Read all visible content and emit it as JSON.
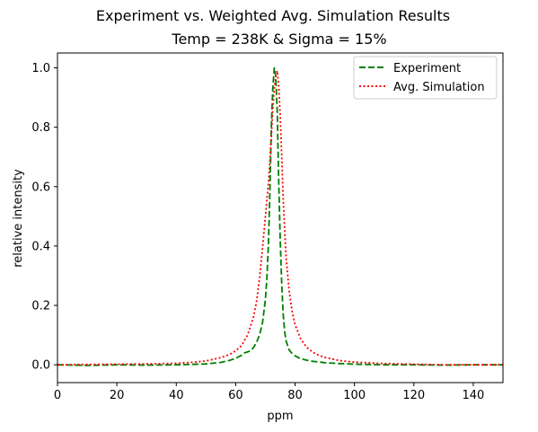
{
  "chart_data": {
    "type": "line",
    "suptitle": "Experiment vs. Weighted Avg. Simulation Results",
    "title": "Temp = 238K & Sigma = 15%",
    "xlabel": "ppm",
    "ylabel": "relative intensity",
    "xlim": [
      0,
      150
    ],
    "ylim": [
      -0.06,
      1.05
    ],
    "xticks": [
      0,
      20,
      40,
      60,
      80,
      100,
      120,
      140
    ],
    "yticks": [
      0.0,
      0.2,
      0.4,
      0.6,
      0.8,
      1.0
    ],
    "xtick_labels": [
      "0",
      "20",
      "40",
      "60",
      "80",
      "100",
      "120",
      "140"
    ],
    "ytick_labels": [
      "0.0",
      "0.2",
      "0.4",
      "0.6",
      "0.8",
      "1.0"
    ],
    "grid": false,
    "legend_position": "top-right",
    "series": [
      {
        "name": "Experiment",
        "color": "#008000",
        "style": "dashed",
        "x": [
          0,
          10,
          20,
          30,
          40,
          50,
          55,
          58,
          60,
          62,
          63,
          64,
          65,
          66,
          67,
          68,
          69,
          70,
          70.5,
          71,
          71.5,
          72,
          72.5,
          73,
          73.5,
          74,
          74.5,
          75,
          75.5,
          76,
          76.5,
          77,
          78,
          79,
          80,
          82,
          85,
          90,
          95,
          100,
          110,
          120,
          130,
          140,
          150
        ],
        "y": [
          0.0,
          -0.002,
          0.0,
          -0.001,
          0.0,
          0.003,
          0.008,
          0.015,
          0.022,
          0.032,
          0.04,
          0.043,
          0.048,
          0.058,
          0.075,
          0.1,
          0.14,
          0.22,
          0.29,
          0.4,
          0.57,
          0.8,
          0.93,
          1.0,
          0.97,
          0.85,
          0.62,
          0.42,
          0.27,
          0.17,
          0.11,
          0.08,
          0.05,
          0.038,
          0.03,
          0.02,
          0.013,
          0.007,
          0.004,
          0.002,
          0.0,
          0.0,
          -0.001,
          0.0,
          0.0
        ]
      },
      {
        "name": "Avg. Simulation",
        "color": "#ff0000",
        "style": "dotted",
        "x": [
          0,
          10,
          20,
          30,
          40,
          45,
          50,
          55,
          58,
          60,
          62,
          64,
          66,
          67,
          68,
          69,
          70,
          71,
          71.5,
          72,
          72.5,
          73,
          73.5,
          74,
          74.5,
          75,
          75.5,
          76,
          76.5,
          77,
          78,
          79,
          80,
          82,
          84,
          86,
          88,
          90,
          95,
          100,
          110,
          120,
          130,
          140,
          150
        ],
        "y": [
          0.0,
          0.001,
          0.002,
          0.003,
          0.005,
          0.008,
          0.013,
          0.024,
          0.035,
          0.047,
          0.065,
          0.1,
          0.16,
          0.21,
          0.29,
          0.39,
          0.5,
          0.61,
          0.68,
          0.77,
          0.86,
          0.93,
          0.97,
          0.99,
          0.94,
          0.84,
          0.7,
          0.56,
          0.45,
          0.36,
          0.25,
          0.18,
          0.135,
          0.085,
          0.058,
          0.042,
          0.032,
          0.025,
          0.014,
          0.009,
          0.004,
          0.002,
          0.0,
          0.0,
          0.0
        ]
      }
    ]
  }
}
